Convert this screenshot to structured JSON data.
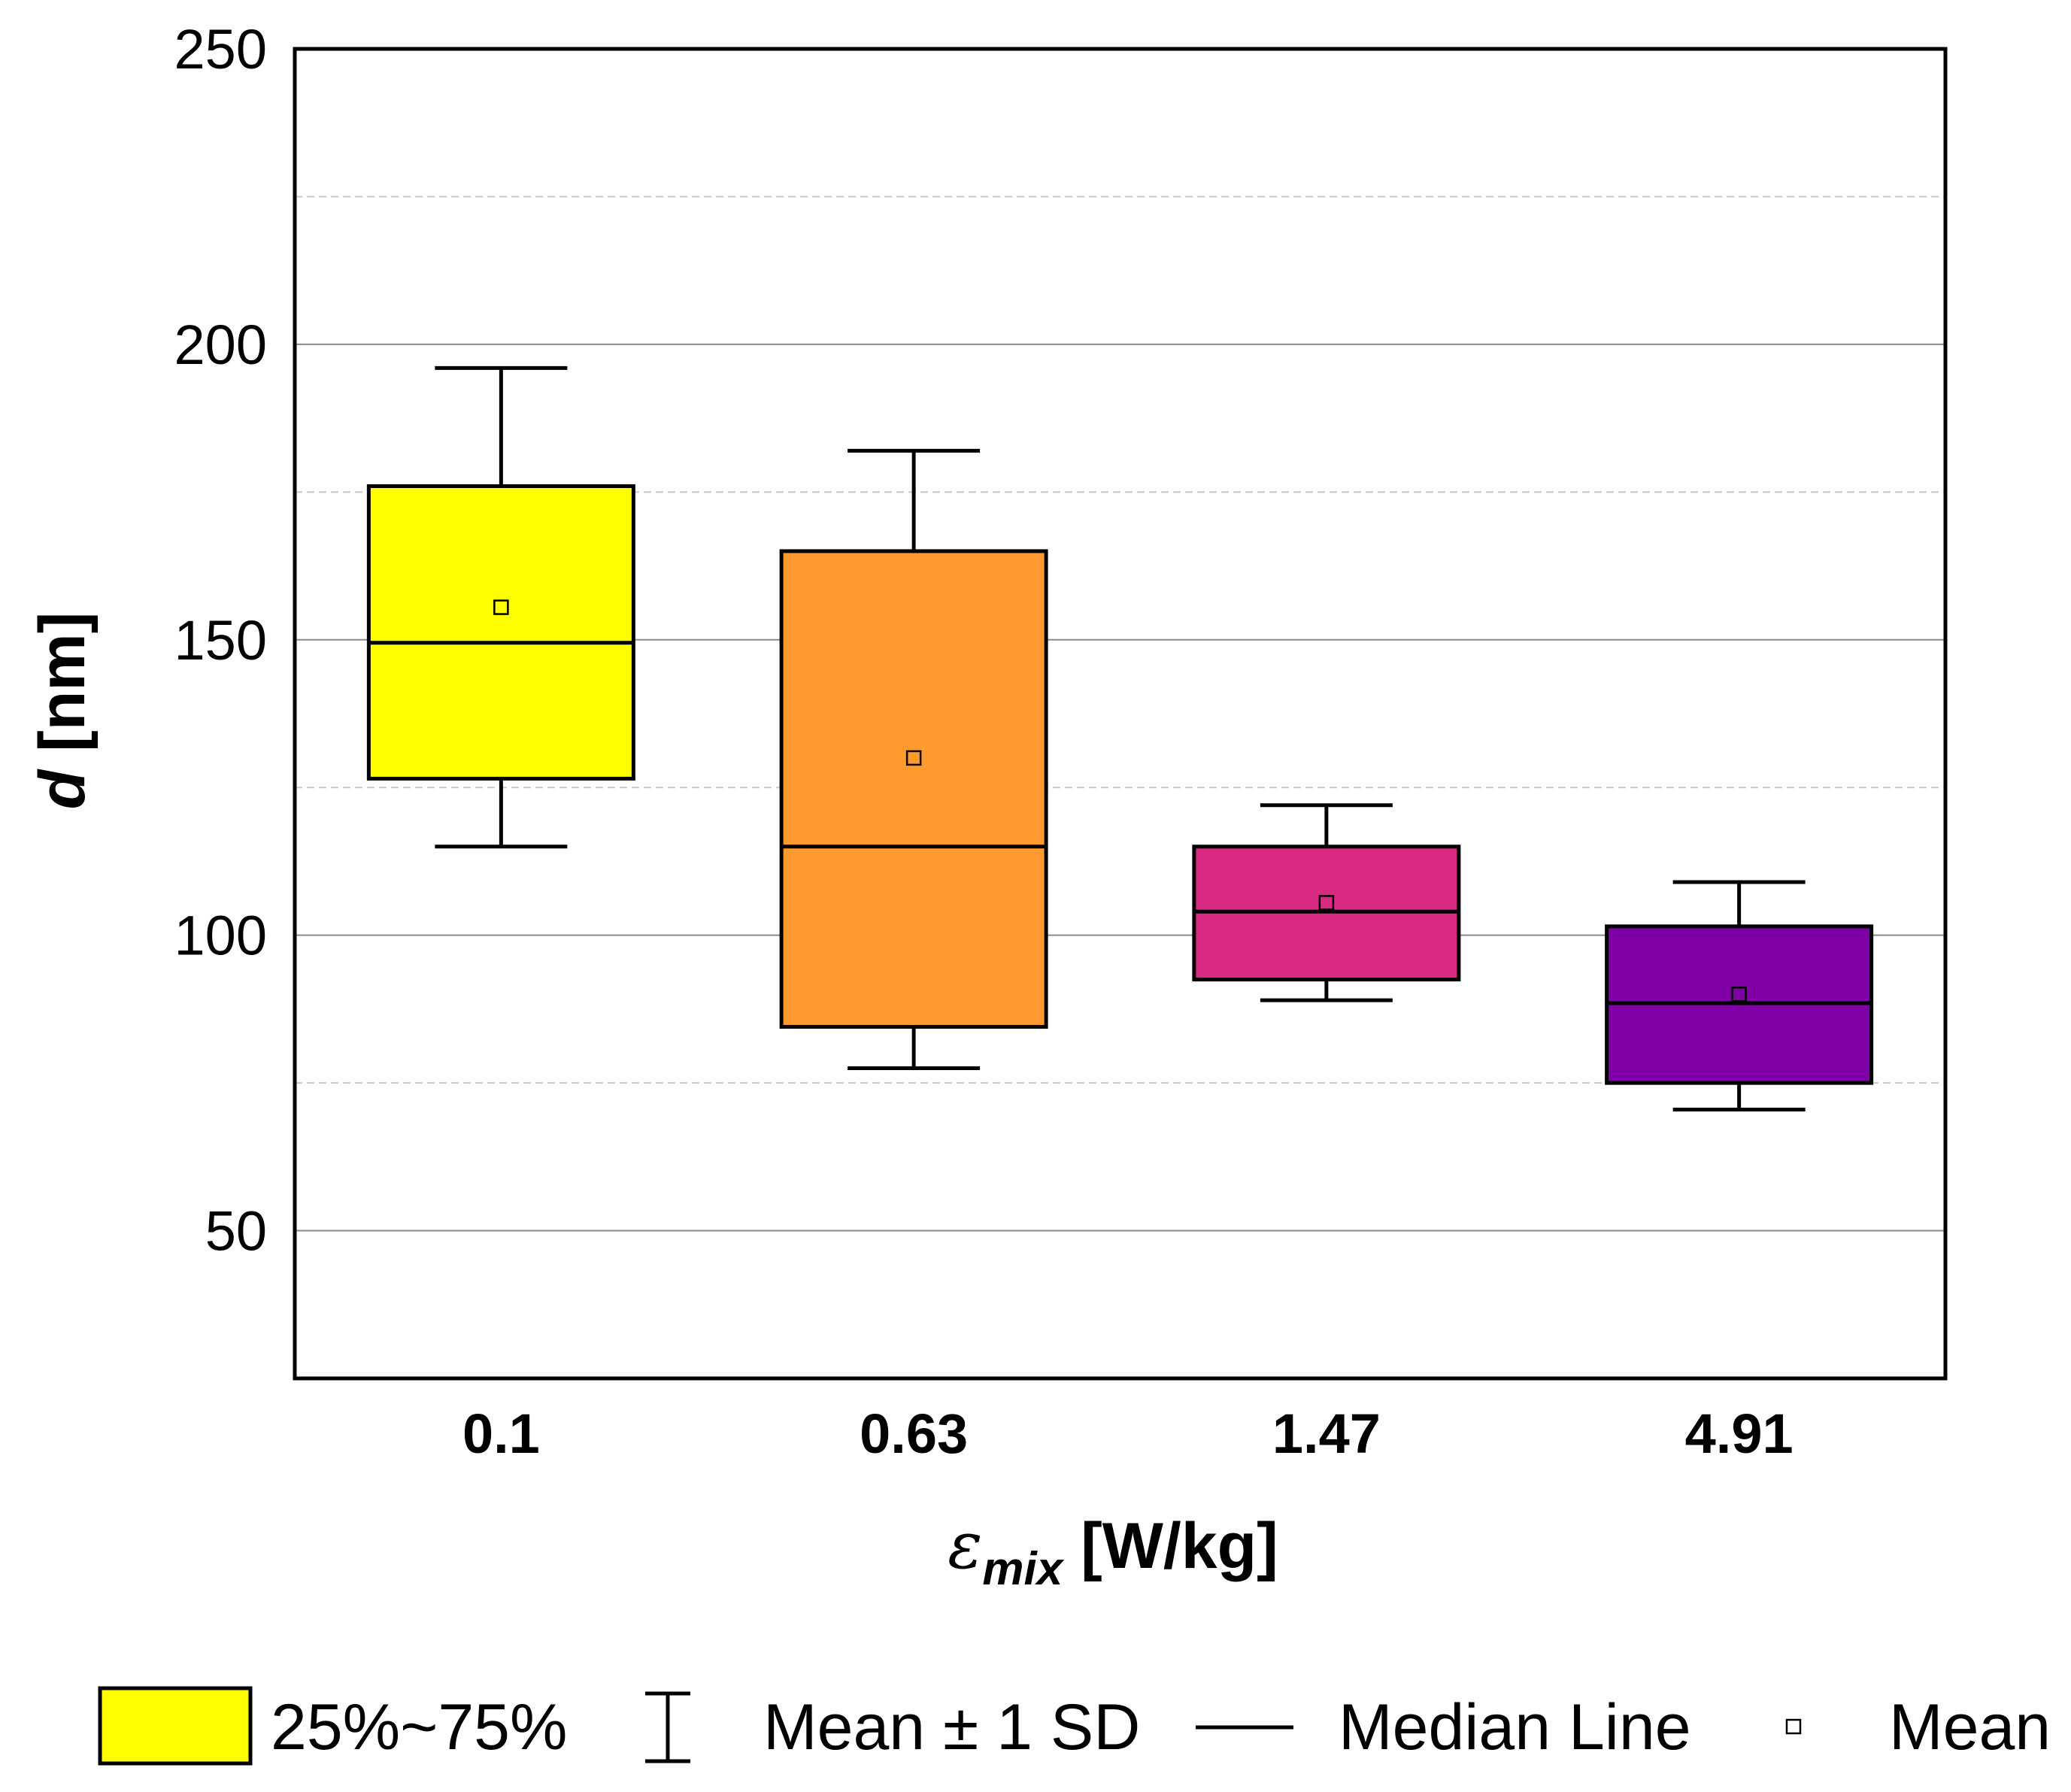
{
  "chart_data": {
    "type": "box",
    "title": "",
    "xlabel": {
      "symbol": "ε",
      "subscript": "mix",
      "unit": " [W/kg]"
    },
    "ylabel": {
      "symbol": "d",
      "unit": " [nm]"
    },
    "ylim": [
      25,
      250
    ],
    "yticks": [
      50,
      100,
      150,
      200,
      250
    ],
    "minor_gridlines": [
      75,
      125,
      175,
      225
    ],
    "categories": [
      "0.1",
      "0.63",
      "1.47",
      "4.91"
    ],
    "boxes": [
      {
        "category": "0.1",
        "q1": 126.5,
        "median": 149.5,
        "q3": 176,
        "mean": 155.5,
        "sd_low": 115,
        "sd_high": 196,
        "color": "#ffff00"
      },
      {
        "category": "0.63",
        "q1": 84.5,
        "median": 115,
        "q3": 165,
        "mean": 130,
        "sd_low": 77.5,
        "sd_high": 182,
        "color": "#ff9a2e"
      },
      {
        "category": "1.47",
        "q1": 92.5,
        "median": 104,
        "q3": 115,
        "mean": 105.5,
        "sd_low": 89,
        "sd_high": 122,
        "color": "#d92a82"
      },
      {
        "category": "4.91",
        "q1": 75,
        "median": 88.5,
        "q3": 101.5,
        "mean": 90,
        "sd_low": 70.5,
        "sd_high": 109,
        "color": "#8000a8"
      }
    ],
    "legend": {
      "placement": "bottom",
      "items": [
        {
          "key": "box",
          "label": "25%~75%"
        },
        {
          "key": "whisker",
          "label": "Mean ± 1 SD"
        },
        {
          "key": "median",
          "label": "Median Line"
        },
        {
          "key": "mean",
          "label": "Mean"
        }
      ]
    }
  }
}
